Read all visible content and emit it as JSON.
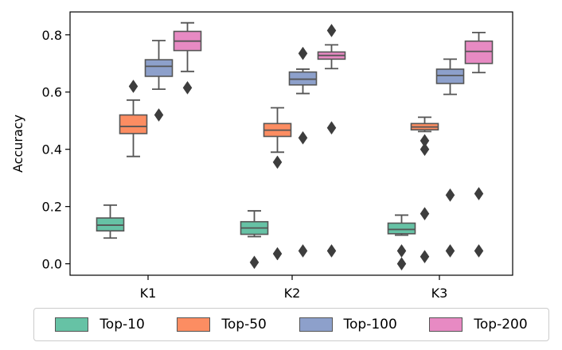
{
  "chart_data": {
    "type": "box",
    "title": "",
    "xlabel": "",
    "ylabel": "Accuracy",
    "ylim": [
      -0.04,
      0.88
    ],
    "yticks": [
      0.0,
      0.2,
      0.4,
      0.6,
      0.8
    ],
    "ytick_labels": [
      "0.0",
      "0.2",
      "0.4",
      "0.6",
      "0.8"
    ],
    "categories": [
      "K1",
      "K2",
      "K3"
    ],
    "legend_position": "bottom-outside",
    "series": [
      {
        "name": "Top-10",
        "color": "#66c2a5",
        "boxes": [
          {
            "whislo": 0.09,
            "q1": 0.115,
            "med": 0.135,
            "q3": 0.16,
            "whishi": 0.205,
            "fliers": []
          },
          {
            "whislo": 0.095,
            "q1": 0.103,
            "med": 0.125,
            "q3": 0.147,
            "whishi": 0.185,
            "fliers": [
              0.005
            ]
          },
          {
            "whislo": 0.1,
            "q1": 0.105,
            "med": 0.12,
            "q3": 0.142,
            "whishi": 0.17,
            "fliers": [
              0.045,
              0.0
            ]
          }
        ]
      },
      {
        "name": "Top-50",
        "color": "#fc8d62",
        "boxes": [
          {
            "whislo": 0.375,
            "q1": 0.455,
            "med": 0.48,
            "q3": 0.52,
            "whishi": 0.572,
            "fliers": [
              0.62
            ]
          },
          {
            "whislo": 0.39,
            "q1": 0.445,
            "med": 0.467,
            "q3": 0.49,
            "whishi": 0.545,
            "fliers": [
              0.355,
              0.035
            ]
          },
          {
            "whislo": 0.462,
            "q1": 0.468,
            "med": 0.478,
            "q3": 0.49,
            "whishi": 0.512,
            "fliers": [
              0.43,
              0.4,
              0.175,
              0.025
            ]
          }
        ]
      },
      {
        "name": "Top-100",
        "color": "#8da0cb",
        "boxes": [
          {
            "whislo": 0.61,
            "q1": 0.655,
            "med": 0.69,
            "q3": 0.713,
            "whishi": 0.78,
            "fliers": [
              0.52
            ]
          },
          {
            "whislo": 0.595,
            "q1": 0.625,
            "med": 0.645,
            "q3": 0.67,
            "whishi": 0.68,
            "fliers": [
              0.735,
              0.44,
              0.045
            ]
          },
          {
            "whislo": 0.592,
            "q1": 0.63,
            "med": 0.658,
            "q3": 0.68,
            "whishi": 0.715,
            "fliers": [
              0.24,
              0.045
            ]
          }
        ]
      },
      {
        "name": "Top-200",
        "color": "#e78ac3",
        "boxes": [
          {
            "whislo": 0.672,
            "q1": 0.745,
            "med": 0.778,
            "q3": 0.812,
            "whishi": 0.842,
            "fliers": [
              0.615
            ]
          },
          {
            "whislo": 0.682,
            "q1": 0.715,
            "med": 0.728,
            "q3": 0.74,
            "whishi": 0.765,
            "fliers": [
              0.815,
              0.475,
              0.045
            ]
          },
          {
            "whislo": 0.668,
            "q1": 0.7,
            "med": 0.742,
            "q3": 0.778,
            "whishi": 0.808,
            "fliers": [
              0.245,
              0.045
            ]
          }
        ]
      }
    ]
  }
}
